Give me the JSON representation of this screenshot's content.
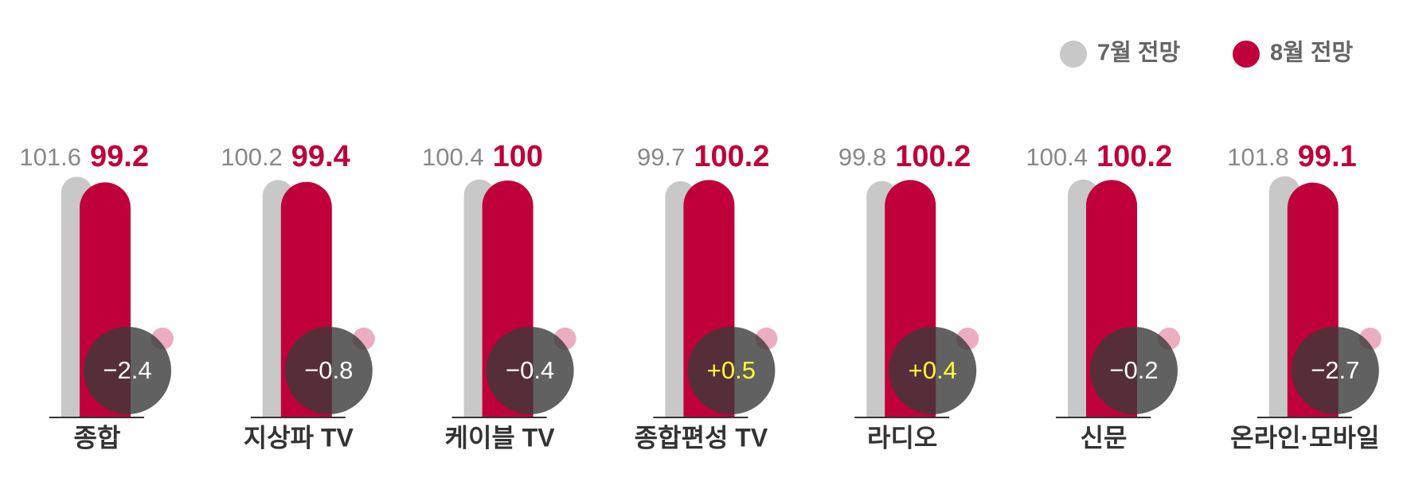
{
  "chart_data": {
    "type": "bar",
    "categories": [
      "종합",
      "지상파 TV",
      "케이블 TV",
      "종합편성 TV",
      "라디오",
      "신문",
      "온라인·모바일"
    ],
    "series": [
      {
        "name": "7월 전망",
        "color": "#c8c8c8",
        "values": [
          101.6,
          100.2,
          100.4,
          99.7,
          99.8,
          100.4,
          101.8
        ]
      },
      {
        "name": "8월 전망",
        "color": "#c0003a",
        "values": [
          99.2,
          99.4,
          100.0,
          100.2,
          100.2,
          100.2,
          99.1
        ]
      }
    ],
    "changes": {
      "values": [
        -2.4,
        -0.8,
        -0.4,
        0.5,
        0.4,
        -0.2,
        -2.7
      ],
      "value_labels": [
        "−2.4",
        "−0.8",
        "−0.4",
        "+0.5",
        "+0.4",
        "−0.2",
        "−2.7"
      ]
    }
  }
}
